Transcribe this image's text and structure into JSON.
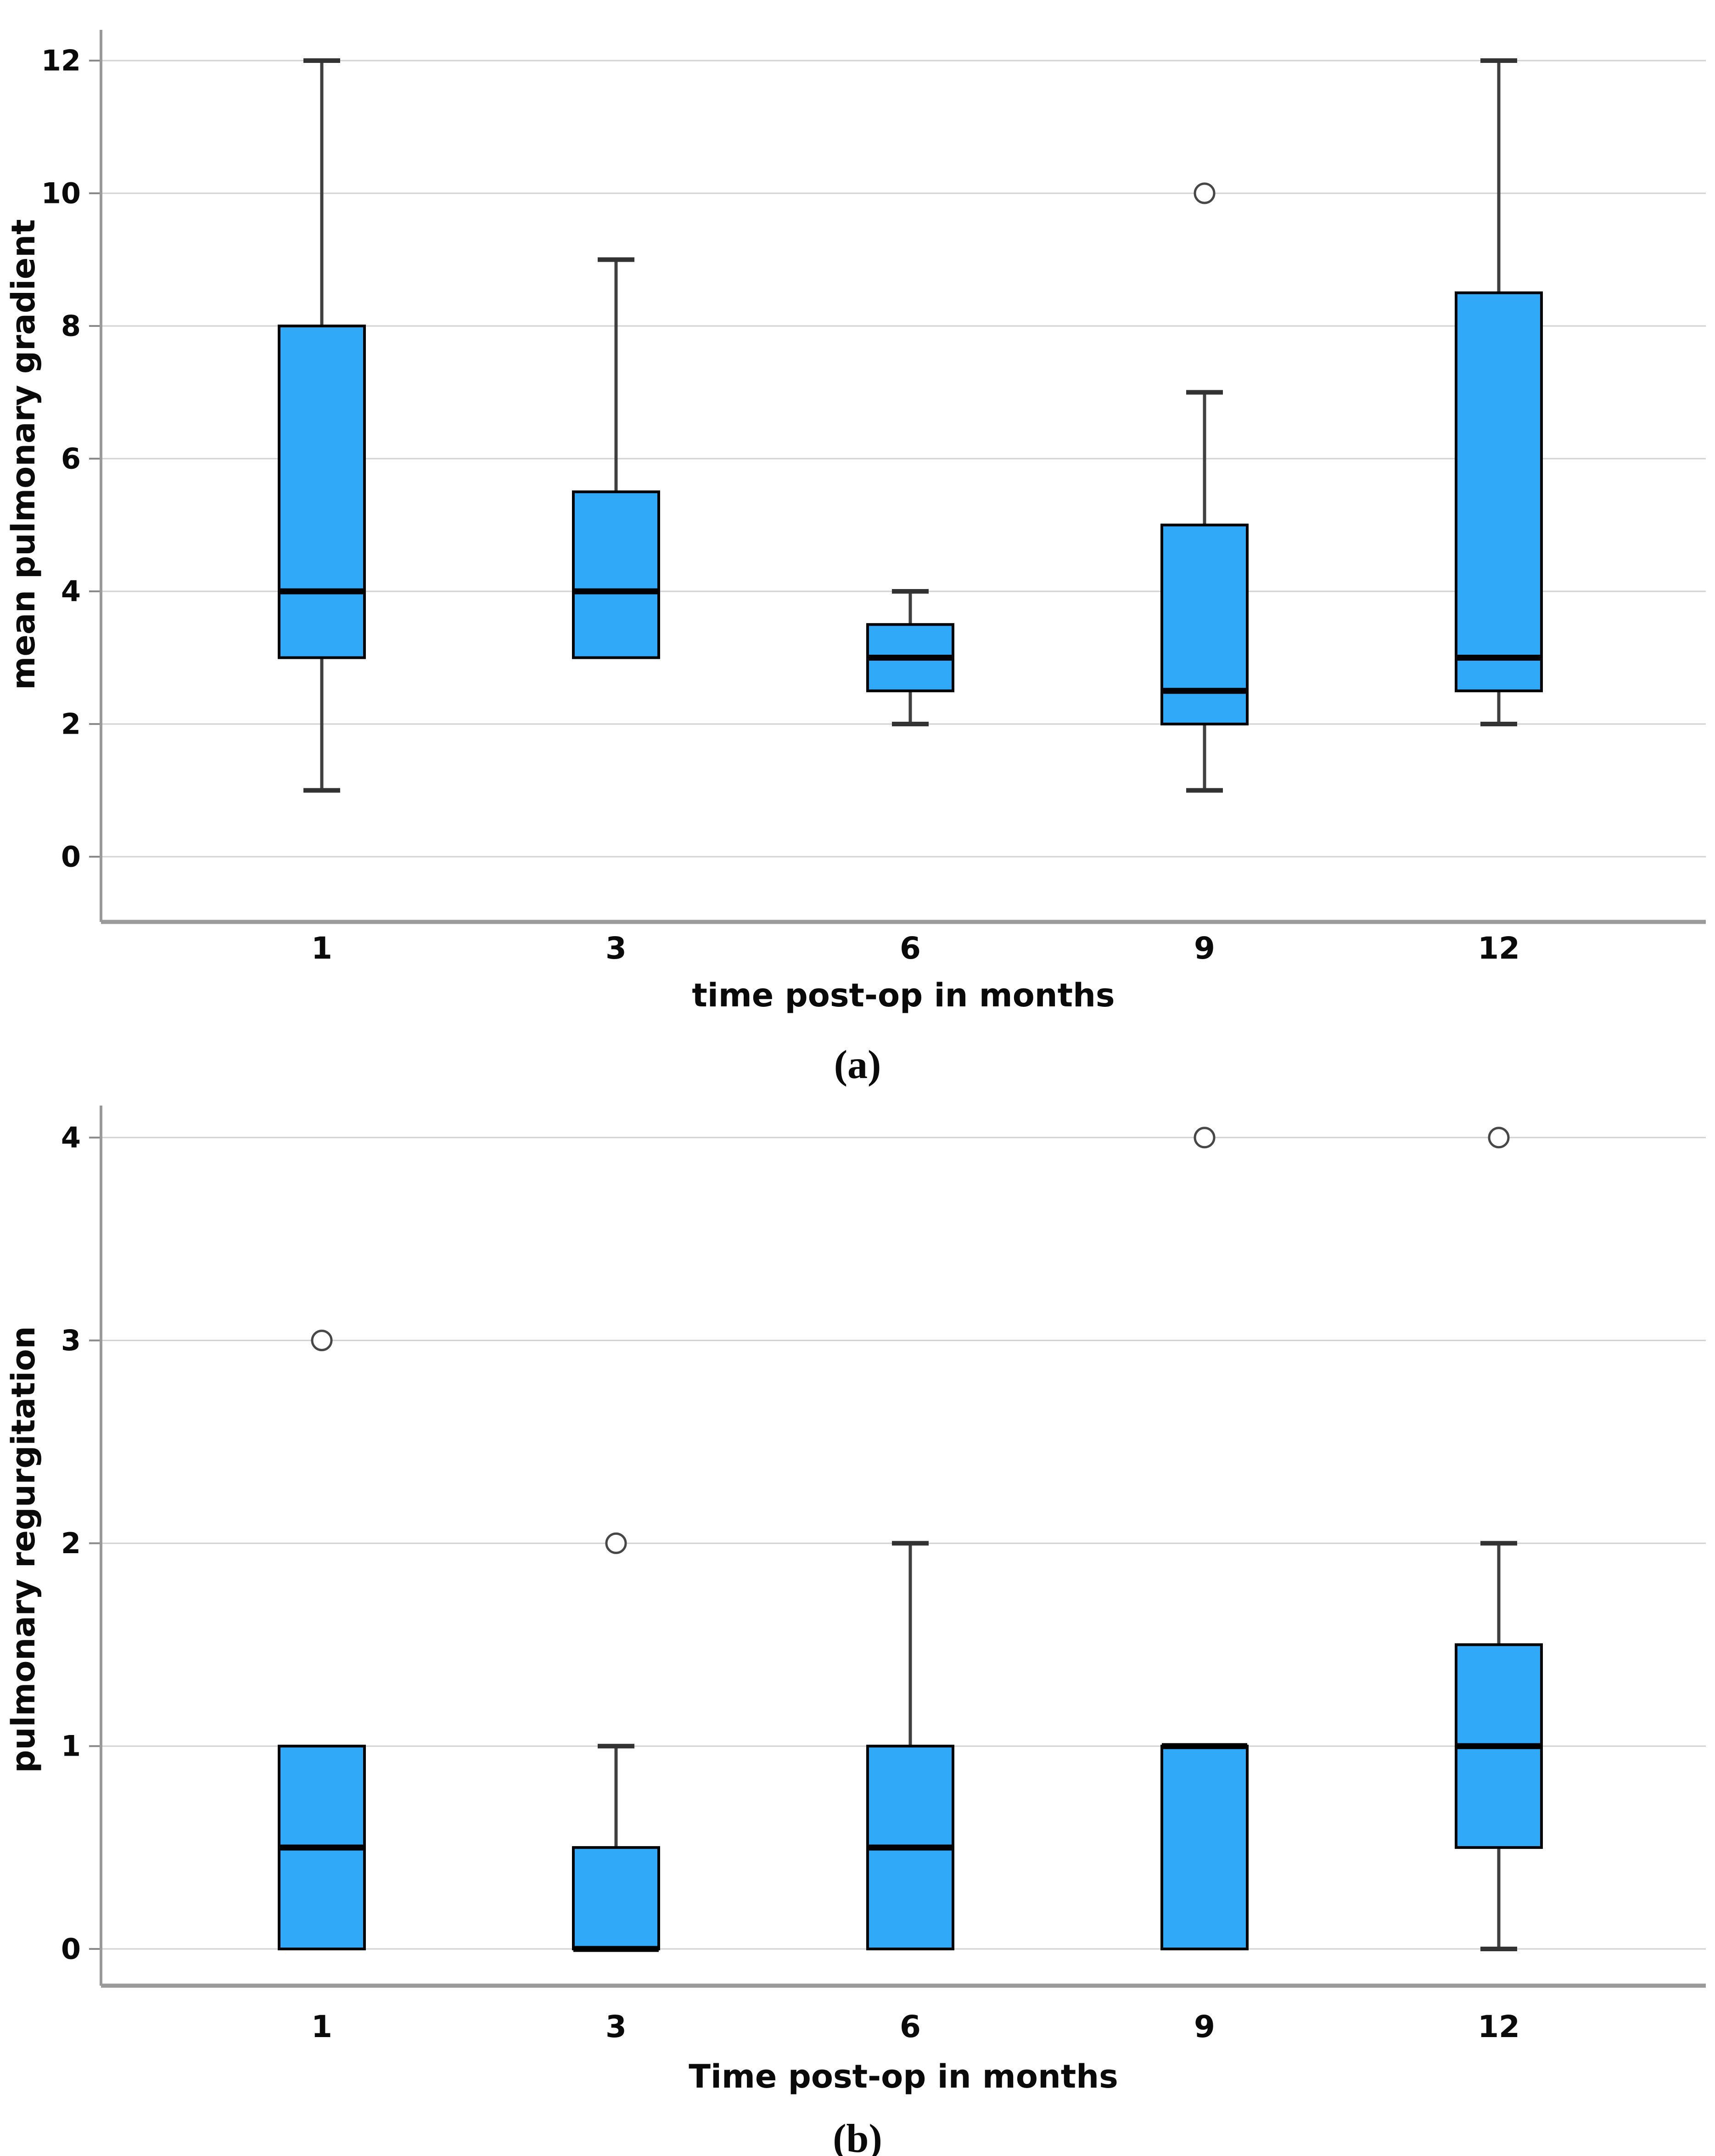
{
  "colors": {
    "box_fill": "#2FA9F8",
    "box_border": "#000000",
    "median": "#000000",
    "whisker": "#404040",
    "whisker_cap": "#333333",
    "outlier_stroke": "#474747",
    "outlier_fill": "#ffffff",
    "gridline": "#D2D2D2",
    "axis": "#9A9A9A",
    "tick": "#8A8A8A",
    "text": "#0A0A0A"
  },
  "chart_data": [
    {
      "type": "boxplot",
      "panel_label": "(a)",
      "title": "",
      "xlabel": "time post-op in months",
      "ylabel": "mean pulmonary gradient",
      "categories": [
        "1",
        "3",
        "6",
        "9",
        "12"
      ],
      "yticks": [
        0,
        2,
        4,
        6,
        8,
        10,
        12
      ],
      "ylim": [
        0,
        12
      ],
      "grid": true,
      "legend": false,
      "boxes": [
        {
          "category": "1",
          "min": 1,
          "q1": 3,
          "median": 4,
          "q3": 8,
          "max": 12,
          "outliers": []
        },
        {
          "category": "3",
          "min": 3,
          "q1": 3,
          "median": 4,
          "q3": 5.5,
          "max": 9,
          "outliers": []
        },
        {
          "category": "6",
          "min": 2,
          "q1": 2.5,
          "median": 3,
          "q3": 3.5,
          "max": 4,
          "outliers": []
        },
        {
          "category": "9",
          "min": 1,
          "q1": 2,
          "median": 2.5,
          "q3": 5,
          "max": 7,
          "outliers": [
            10
          ]
        },
        {
          "category": "12",
          "min": 2,
          "q1": 2.5,
          "median": 3,
          "q3": 8.5,
          "max": 12,
          "outliers": []
        }
      ]
    },
    {
      "type": "boxplot",
      "panel_label": "(b)",
      "title": "",
      "xlabel": "Time post-op in months",
      "ylabel": "pulmonary regurgitation",
      "categories": [
        "1",
        "3",
        "6",
        "9",
        "12"
      ],
      "yticks": [
        0,
        1,
        2,
        3,
        4
      ],
      "ylim": [
        0,
        4
      ],
      "grid": true,
      "legend": false,
      "boxes": [
        {
          "category": "1",
          "min": 0,
          "q1": 0,
          "median": 0.5,
          "q3": 1,
          "max": 1,
          "outliers": [
            3
          ]
        },
        {
          "category": "3",
          "min": 0,
          "q1": 0,
          "median": 0,
          "q3": 0.5,
          "max": 1,
          "outliers": [
            2
          ]
        },
        {
          "category": "6",
          "min": 0,
          "q1": 0,
          "median": 0.5,
          "q3": 1,
          "max": 2,
          "outliers": []
        },
        {
          "category": "9",
          "min": 0,
          "q1": 0,
          "median": 1,
          "q3": 1,
          "max": 1,
          "outliers": [
            4
          ]
        },
        {
          "category": "12",
          "min": 0,
          "q1": 0.5,
          "median": 1,
          "q3": 1.5,
          "max": 2,
          "outliers": [
            4
          ]
        }
      ]
    }
  ]
}
